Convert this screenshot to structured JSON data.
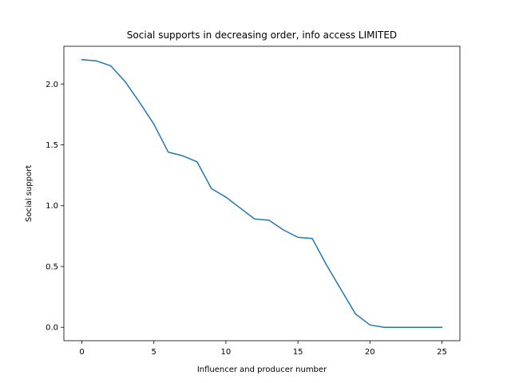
{
  "chart_data": {
    "type": "line",
    "title": "Social supports in decreasing order, info access LIMITED",
    "xlabel": "Influencer and producer number",
    "ylabel": "Social support",
    "xlim": [
      -1.25,
      26.25
    ],
    "ylim": [
      -0.11,
      2.31
    ],
    "xticks": [
      0,
      5,
      10,
      15,
      20,
      25
    ],
    "xtick_labels": [
      "0",
      "5",
      "10",
      "15",
      "20",
      "25"
    ],
    "yticks": [
      0.0,
      0.5,
      1.0,
      1.5,
      2.0
    ],
    "ytick_labels": [
      "0.0",
      "0.5",
      "1.0",
      "1.5",
      "2.0"
    ],
    "grid": false,
    "series": [
      {
        "color": "#1f77b4",
        "x": [
          0,
          1,
          2,
          3,
          4,
          5,
          6,
          7,
          8,
          9,
          10,
          11,
          12,
          13,
          14,
          15,
          16,
          17,
          18,
          19,
          20,
          21,
          22,
          23,
          24,
          25
        ],
        "values": [
          2.2,
          2.19,
          2.15,
          2.02,
          1.85,
          1.67,
          1.44,
          1.41,
          1.36,
          1.14,
          1.07,
          0.98,
          0.89,
          0.88,
          0.8,
          0.74,
          0.73,
          0.51,
          0.31,
          0.11,
          0.02,
          0.0,
          0.0,
          0.0,
          0.0,
          0.0
        ]
      }
    ]
  }
}
